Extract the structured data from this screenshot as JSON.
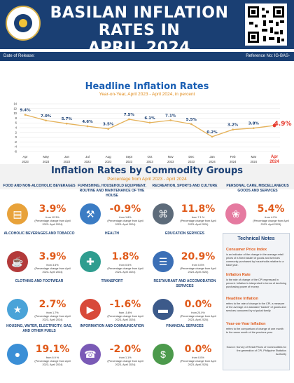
{
  "header": {
    "title_line1": "BASILAN INFLATION RATES IN",
    "title_line2": "APRIL 2024",
    "seal_text": "PHILIPPINE STATISTICS AUTHORITY"
  },
  "info_bar": {
    "release_label": "Date of Release:",
    "reference_label": "Reference No: IG-BAS-"
  },
  "headline": {
    "title": "Headline Inflation Rates",
    "subtitle": "Year-on-Year, April 2023 - April 2024, in percent"
  },
  "chart_data": {
    "type": "line",
    "x": [
      "Apr 2023",
      "May 2023",
      "Jun 2023",
      "Jul 2023",
      "Aug 2023",
      "Sept 2023",
      "Oct 2023",
      "Nov 2023",
      "Dec 2023",
      "Jan 2024",
      "Feb 2024",
      "Mar 2024",
      "Apr 2024"
    ],
    "x_month": [
      "Apr",
      "May",
      "Jun",
      "Jul",
      "Aug",
      "Sept",
      "Oct",
      "Nov",
      "Dec",
      "Jan",
      "Feb",
      "Mar",
      "Apr"
    ],
    "x_year": [
      "2023",
      "2023",
      "2023",
      "2023",
      "2023",
      "2023",
      "2023",
      "2023",
      "2023",
      "2024",
      "2024",
      "2024",
      "2024"
    ],
    "values": [
      9.4,
      7.0,
      5.7,
      4.6,
      3.5,
      7.5,
      6.1,
      7.1,
      5.5,
      0.2,
      3.2,
      3.8,
      4.9
    ],
    "labels": [
      "9.4%",
      "7.0%",
      "5.7%",
      "4.6%",
      "3.5%",
      "7.5%",
      "6.1%",
      "7.1%",
      "5.5%",
      "0.2%",
      "3.2%",
      "3.8%",
      "4.9%"
    ],
    "ylim": [
      -6,
      14
    ],
    "yticks": [
      "14",
      "12",
      "10",
      "8",
      "6",
      "4",
      "2",
      "0",
      "-2",
      "-4",
      "-6"
    ],
    "grid": true,
    "line_color": "#e5b25a",
    "highlight_color": "#e63b2e"
  },
  "commodity": {
    "title": "Inflation Rates by Commodity Groups",
    "subtitle": "Percentage from April 2023 - April 2024"
  },
  "commodities": [
    {
      "name": "FOOD AND NON-ALCOHOLIC BEVERAGES",
      "value": "3.9%",
      "desc1": "from 12.3%",
      "desc2": "(Percentage change from April 2023- April 2024)",
      "icon": "burger-icon",
      "color": "#e8a23a"
    },
    {
      "name": "FURNISHING, HOUSEHOLD EQUIPMENT, ROUTINE AND MAINTENANCE OF THE HOUSE",
      "value": "-0.9%",
      "desc1": "from 1.8%",
      "desc2": "(Percentage change from April 2023- April 2024)",
      "icon": "house-tools-icon",
      "color": "#3b7cc4"
    },
    {
      "name": "RECREATION, SPORTS AND CULTURE",
      "value": "11.8%",
      "desc1": "from 7.1 %",
      "desc2": "(Percentage change from April 2023- April 2024)",
      "icon": "gamepad-icon",
      "color": "#5d6b7a"
    },
    {
      "name": "PERSONAL CARE, MISCELLANEOUS GOODS AND SERVICES",
      "value": "5.4%",
      "desc1": "from 4.2%",
      "desc2": "(Percentage change from April 2023- April 2024)",
      "icon": "lipstick-icon",
      "color": "#e57aa0"
    },
    {
      "name": "ALCOHOLIC BEVERAGES AND TOBACCO",
      "value": "3.9%",
      "desc1": "from 3.5%",
      "desc2": "(Percentage change from April 2023- April 2024)",
      "icon": "wine-icon",
      "color": "#b33a3a"
    },
    {
      "name": "HEALTH",
      "value": "1.8%",
      "desc1": "from 0.5%",
      "desc2": "(Percentage change from April 2023- April 2024)",
      "icon": "medkit-icon",
      "color": "#2f9d8f"
    },
    {
      "name": "EDUCATION SERVICES",
      "value": "20.9%",
      "desc1": "from 0.0%",
      "desc2": "(Percentage change from April 2023- April 2024)",
      "icon": "book-icon",
      "color": "#3b6fb6"
    },
    {
      "name": "CLOTHING AND FOOTWEAR",
      "value": "2.7%",
      "desc1": "from 1.7%",
      "desc2": "(Percentage change from April 2023- April 2024)",
      "icon": "shirt-icon",
      "color": "#4aa3d8"
    },
    {
      "name": "TRANSPORT",
      "value": "-1.6%",
      "desc1": "from -5.6%",
      "desc2": "(Percentage change from April 2023- April 2024)",
      "icon": "car-icon",
      "color": "#d84a3a"
    },
    {
      "name": "RESTAURANT AND ACCOMODATION SERVICES",
      "value": "0.0%",
      "desc1": "from 20.0%",
      "desc2": "(Percentage change from April 2023- April 2024)",
      "icon": "bed-icon",
      "color": "#3c5a8a"
    },
    {
      "name": "HOUSING, WATER, ELECTRICITY, GAS, AND OTHER FUELS",
      "value": "19.1%",
      "desc1": "from 6.9 %",
      "desc2": "(Percentage change from April 2023- April 2024)",
      "icon": "water-drop-icon",
      "color": "#3b8fd6"
    },
    {
      "name": "INFORMATION AND COMMUNICATION",
      "value": "-2.0%",
      "desc1": "from 1.1%",
      "desc2": "(Percentage change from April 2023- April 2024)",
      "icon": "phone-icon",
      "color": "#7a5ab6"
    },
    {
      "name": "FINANCIAL SERVICES",
      "value": "0.0%",
      "desc1": "from 0.0%",
      "desc2": "(Percentage change from April 2023- April 2024)",
      "icon": "money-icon",
      "color": "#4c9a4c"
    }
  ],
  "notes": {
    "title": "Technical Notes",
    "cpi_h": "Consumer Price Index",
    "cpi_p": "is an indicator of the change in the average retail prices of a fixed basket of goods and services commonly purchased by households relative to a base year.",
    "inf_h": "Inflation Rate",
    "inf_p": "is the rate of change of the CPI expressed in percent. Inflation is interpreted in terms of declining purchasing power of money.",
    "head_h": "Headline Inflation",
    "head_p": "refers to the rate of change in the CPI, a measure of the average of a standard \"basket\" of goods and services consumed by a typical family.",
    "yoy_h": "Year-on-Year Inflation",
    "yoy_p": "refers to the comparison of change of one month to the same month of the previous year.",
    "source": "Source: Survey of Retail Prices of Commodities for the generation of CPI, Philippine Statistics Authority"
  }
}
